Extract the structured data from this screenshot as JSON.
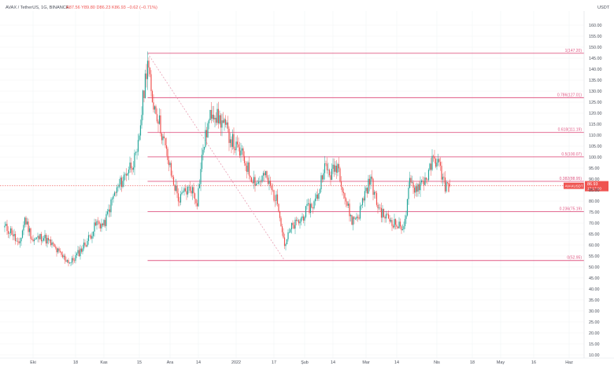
{
  "header": {
    "symbol": "AVAX / TetherUS, 1G, BINANCE",
    "ohlc": "A87.56  Y89.80  D86.23  K86.93  −0.62 (−0.71%)"
  },
  "colors": {
    "up": "#26a69a",
    "down": "#ef5350",
    "fib": "#e05a85",
    "trend": "#e9a0b4",
    "price_tag": "#ef5350",
    "grid": "#f1f3f6",
    "axis_text": "#4a4f5a"
  },
  "chart_data": {
    "type": "candlestick",
    "y_unit": "USDT",
    "ylim": [
      10,
      165
    ],
    "y_ticks": [
      10,
      15,
      20,
      25,
      30,
      35,
      40,
      45,
      50,
      55,
      60,
      65,
      70,
      75,
      80,
      85,
      90,
      95,
      100,
      105,
      110,
      115,
      120,
      125,
      130,
      135,
      140,
      145,
      150,
      155,
      160
    ],
    "x_ticks": [
      {
        "i": 24,
        "label": "Eki"
      },
      {
        "i": 60,
        "label": "18"
      },
      {
        "i": 84,
        "label": "Kas"
      },
      {
        "i": 114,
        "label": "15"
      },
      {
        "i": 140,
        "label": "Ara"
      },
      {
        "i": 164,
        "label": "14"
      },
      {
        "i": 196,
        "label": "2022"
      },
      {
        "i": 228,
        "label": "17"
      },
      {
        "i": 254,
        "label": "Şub"
      },
      {
        "i": 278,
        "label": "14"
      },
      {
        "i": 306,
        "label": "Mar"
      },
      {
        "i": 332,
        "label": "14"
      },
      {
        "i": 366,
        "label": "Nis"
      },
      {
        "i": 396,
        "label": "18"
      },
      {
        "i": 420,
        "label": "May"
      },
      {
        "i": 448,
        "label": "16"
      },
      {
        "i": 478,
        "label": "Haz"
      }
    ],
    "last_price": {
      "value": 86.93,
      "label": "AVAXUSDT",
      "price_label": "86.93",
      "countdown": "17:17:10"
    },
    "fib_levels": [
      {
        "level_label": "1(147.20)",
        "value": 147.2
      },
      {
        "level_label": "0.786(127.01)",
        "value": 127.01
      },
      {
        "level_label": "0.618(111.19)",
        "value": 111.19
      },
      {
        "level_label": "0.5(100.07)",
        "value": 100.07
      },
      {
        "level_label": "0.382(88.95)",
        "value": 88.95
      },
      {
        "level_label": "0.236(75.19)",
        "value": 75.19
      },
      {
        "level_label": "0(52.95)",
        "value": 52.95
      }
    ],
    "trend_line": {
      "from": {
        "i": 121,
        "value": 147.2
      },
      "to": {
        "i": 237,
        "value": 52.95
      }
    },
    "fib_start_index": 121,
    "anchors": [
      [
        0,
        68
      ],
      [
        6,
        66
      ],
      [
        12,
        59
      ],
      [
        17,
        72
      ],
      [
        24,
        62
      ],
      [
        32,
        64
      ],
      [
        40,
        60
      ],
      [
        48,
        55
      ],
      [
        56,
        52
      ],
      [
        62,
        56
      ],
      [
        70,
        62
      ],
      [
        78,
        70
      ],
      [
        84,
        69
      ],
      [
        92,
        82
      ],
      [
        100,
        90
      ],
      [
        106,
        96
      ],
      [
        112,
        100
      ],
      [
        117,
        126
      ],
      [
        121,
        145
      ],
      [
        124,
        128
      ],
      [
        130,
        118
      ],
      [
        136,
        104
      ],
      [
        142,
        90
      ],
      [
        148,
        80
      ],
      [
        152,
        84
      ],
      [
        158,
        86
      ],
      [
        163,
        80
      ],
      [
        168,
        104
      ],
      [
        172,
        114
      ],
      [
        176,
        122
      ],
      [
        180,
        118
      ],
      [
        184,
        116
      ],
      [
        190,
        110
      ],
      [
        196,
        104
      ],
      [
        202,
        100
      ],
      [
        208,
        92
      ],
      [
        214,
        88
      ],
      [
        220,
        92
      ],
      [
        226,
        85
      ],
      [
        232,
        78
      ],
      [
        237,
        60
      ],
      [
        243,
        68
      ],
      [
        250,
        71
      ],
      [
        256,
        76
      ],
      [
        262,
        79
      ],
      [
        266,
        84
      ],
      [
        270,
        96
      ],
      [
        276,
        92
      ],
      [
        282,
        97
      ],
      [
        288,
        82
      ],
      [
        294,
        71
      ],
      [
        300,
        74
      ],
      [
        305,
        84
      ],
      [
        310,
        90
      ],
      [
        315,
        79
      ],
      [
        320,
        74
      ],
      [
        325,
        72
      ],
      [
        330,
        70
      ],
      [
        335,
        68
      ],
      [
        339,
        70
      ],
      [
        343,
        88
      ],
      [
        348,
        86
      ],
      [
        354,
        89
      ],
      [
        359,
        92
      ],
      [
        362,
        98
      ],
      [
        366,
        99
      ],
      [
        369,
        94
      ],
      [
        373,
        87
      ],
      [
        377,
        86.93
      ]
    ]
  }
}
